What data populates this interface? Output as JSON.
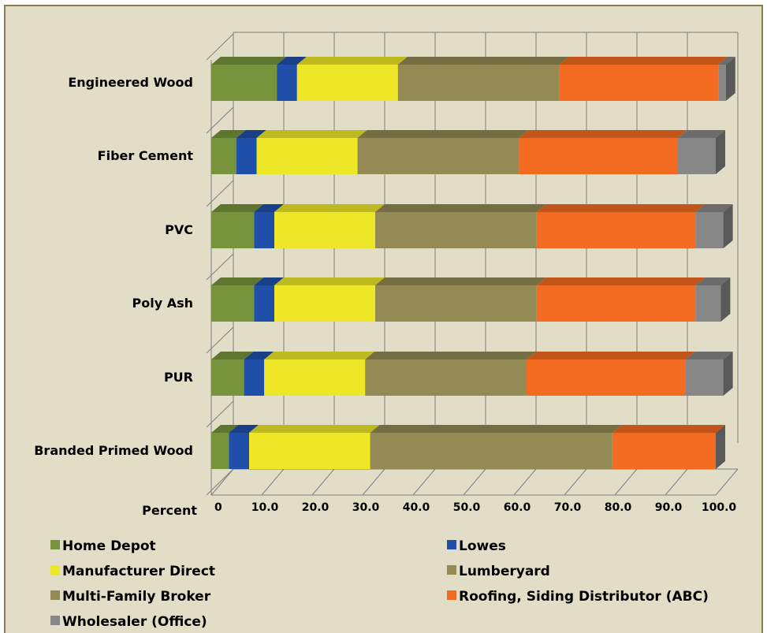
{
  "chart_data": {
    "type": "bar",
    "stacked": true,
    "orientation": "horizontal",
    "three_d": true,
    "grid": true,
    "xlabel": "Percent",
    "xlim": [
      0,
      100
    ],
    "ticks": [
      "0",
      "10.0",
      "20.0",
      "30.0",
      "40.0",
      "50.0",
      "60.0",
      "70.0",
      "80.0",
      "90.0",
      "100.0"
    ],
    "categories": [
      "Engineered Wood",
      "Fiber Cement",
      "PVC",
      "Poly Ash",
      "PUR",
      "Branded Primed Wood"
    ],
    "series": [
      {
        "name": "Home Depot",
        "color": "#77933c",
        "values": [
          13.0,
          5.0,
          8.5,
          8.5,
          6.5,
          3.5
        ]
      },
      {
        "name": "Lowes",
        "color": "#1f4fa8",
        "values": [
          4.0,
          4.0,
          4.0,
          4.0,
          4.0,
          4.0
        ]
      },
      {
        "name": "Manufacturer Direct",
        "color": "#ede727",
        "values": [
          20.0,
          20.0,
          20.0,
          20.0,
          20.0,
          24.0
        ]
      },
      {
        "name": "Lumberyard",
        "color": "#948a54",
        "values": [
          32.0,
          32.0,
          32.0,
          32.0,
          32.0,
          48.0
        ]
      },
      {
        "name": "Multi-Family Broker",
        "color": "#948a54",
        "values": [
          0,
          0,
          0,
          0,
          0,
          0
        ]
      },
      {
        "name": "Roofing, Siding Distributor (ABC)",
        "color": "#f26b21",
        "values": [
          31.5,
          31.5,
          31.5,
          31.5,
          31.5,
          20.5
        ]
      },
      {
        "name": "Wholesaler (Office)",
        "color": "#878787",
        "values": [
          1.5,
          7.5,
          5.5,
          5.0,
          7.5,
          0
        ]
      }
    ],
    "legend_position": "bottom"
  }
}
